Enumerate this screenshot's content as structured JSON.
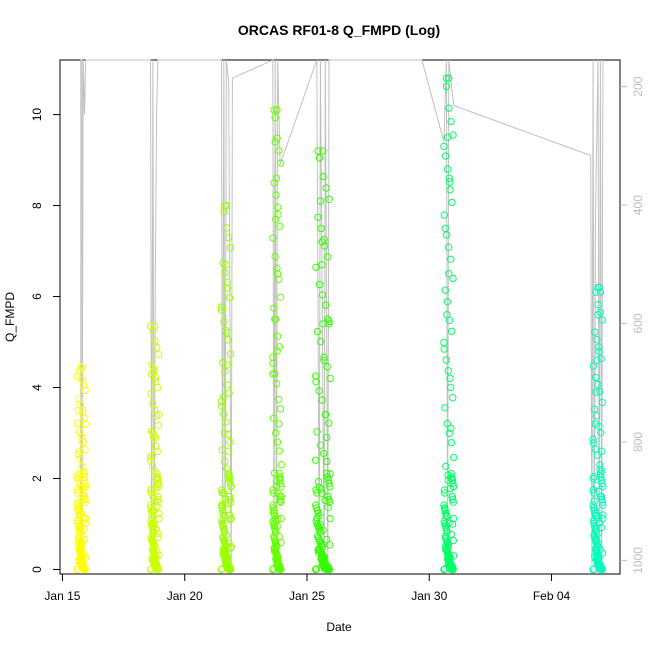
{
  "chart_data": {
    "type": "scatter",
    "title": "ORCAS RF01-8 Q_FMPD (Log)",
    "xlabel": "Date",
    "ylabel": "Q_FMPD",
    "x_ticks": [
      {
        "day": 15,
        "label": "Jan 15"
      },
      {
        "day": 20,
        "label": "Jan 20"
      },
      {
        "day": 25,
        "label": "Jan 25"
      },
      {
        "day": 30,
        "label": "Jan 30"
      },
      {
        "day": 35,
        "label": "Feb 04"
      }
    ],
    "y_ticks": [
      0,
      2,
      4,
      6,
      8,
      10
    ],
    "y2_ticks": [
      200,
      400,
      600,
      800,
      1000
    ],
    "xlim": [
      14.9,
      37.8
    ],
    "ylim": [
      -0.1,
      11.2
    ],
    "y2lim": [
      1023,
      155
    ],
    "y2_reversed": true,
    "grid": false,
    "series": [
      {
        "start": 15.6,
        "end": 15.95,
        "max": 4.45,
        "color": "#ffff00",
        "x": [
          15.6,
          15.65,
          15.7,
          15.75,
          15.8,
          15.85,
          15.9,
          15.95,
          15.68,
          15.72,
          15.78,
          15.83
        ],
        "y": [
          4.25,
          3.5,
          2.6,
          1.5,
          4.45,
          1.8,
          0.9,
          3.2,
          2.1,
          1.2,
          0.6,
          2.8
        ]
      },
      {
        "start": 18.6,
        "end": 18.95,
        "max": 5.35,
        "color": "#ccff00",
        "x": [
          18.6,
          18.65,
          18.7,
          18.75,
          18.8,
          18.85,
          18.9,
          18.95,
          18.68,
          18.72,
          18.78,
          18.88
        ],
        "y": [
          5.35,
          4.3,
          3.0,
          4.4,
          2.9,
          1.8,
          0.7,
          3.4,
          2.5,
          1.3,
          0.5,
          2.0
        ]
      },
      {
        "start": 21.5,
        "end": 21.9,
        "max": 8.0,
        "color": "#99ff00",
        "x": [
          21.5,
          21.55,
          21.6,
          21.65,
          21.7,
          21.75,
          21.8,
          21.85,
          21.9,
          21.62,
          21.72,
          21.78
        ],
        "y": [
          5.7,
          1.4,
          3.8,
          8.0,
          6.7,
          4.5,
          2.6,
          1.1,
          0.5,
          3.0,
          5.2,
          2.0
        ]
      },
      {
        "start": 23.6,
        "end": 23.95,
        "max": 10.1,
        "color": "#66ff00",
        "x": [
          23.6,
          23.65,
          23.7,
          23.75,
          23.8,
          23.85,
          23.9,
          23.95,
          23.68,
          23.72,
          23.78,
          23.82
        ],
        "y": [
          4.3,
          10.1,
          9.4,
          8.6,
          6.5,
          3.2,
          2.0,
          1.6,
          5.5,
          7.7,
          4.8,
          1.1
        ]
      },
      {
        "start": 25.35,
        "end": 25.95,
        "max": 9.2,
        "color": "#33ff00",
        "x": [
          25.35,
          25.45,
          25.55,
          25.6,
          25.65,
          25.7,
          25.75,
          25.8,
          25.85,
          25.9,
          25.95,
          25.5,
          25.62
        ],
        "y": [
          2.4,
          9.2,
          8.1,
          6.7,
          5.4,
          4.6,
          3.4,
          2.9,
          5.5,
          5.4,
          4.2,
          1.8,
          7.2
        ]
      },
      {
        "start": 30.6,
        "end": 31.0,
        "max": 10.8,
        "color": "#00ff66",
        "x": [
          30.6,
          30.65,
          30.7,
          30.75,
          30.8,
          30.85,
          30.9,
          30.95,
          31.0,
          30.72,
          30.82,
          30.88
        ],
        "y": [
          9.3,
          7.5,
          10.8,
          9.5,
          6.5,
          4.2,
          2.0,
          1.0,
          0.3,
          5.6,
          8.6,
          3.1
        ]
      },
      {
        "start": 36.7,
        "end": 37.1,
        "max": 6.2,
        "color": "#00ffbb",
        "x": [
          36.7,
          36.75,
          36.8,
          36.85,
          36.9,
          36.95,
          37.0,
          37.05,
          37.1,
          36.82,
          36.92,
          36.98
        ],
        "y": [
          2.0,
          1.5,
          3.2,
          4.6,
          5.6,
          6.2,
          6.1,
          2.6,
          1.2,
          3.9,
          0.8,
          2.2
        ]
      }
    ],
    "altitude_trace": [
      [
        15.75,
        0.0
      ],
      [
        15.75,
        11.2
      ],
      [
        15.8,
        11.2
      ],
      [
        15.8,
        0.2
      ],
      [
        15.85,
        11.2
      ],
      [
        15.9,
        10.0
      ],
      [
        15.95,
        11.2
      ],
      [
        17.1,
        11.2
      ],
      [
        18.6,
        11.2
      ],
      [
        18.65,
        0.1
      ],
      [
        18.7,
        11.2
      ],
      [
        18.75,
        0.1
      ],
      [
        18.8,
        6.6
      ],
      [
        18.85,
        10.0
      ],
      [
        18.9,
        11.2
      ],
      [
        21.5,
        11.2
      ],
      [
        21.55,
        0.1
      ],
      [
        21.6,
        11.2
      ],
      [
        21.65,
        0.1
      ],
      [
        21.7,
        11.2
      ],
      [
        21.8,
        10.7
      ],
      [
        21.9,
        0.0
      ],
      [
        21.95,
        10.8
      ],
      [
        23.6,
        11.2
      ],
      [
        23.65,
        0.2
      ],
      [
        23.7,
        11.2
      ],
      [
        23.75,
        0.1
      ],
      [
        23.8,
        11.2
      ],
      [
        23.9,
        8.9
      ],
      [
        25.4,
        11.2
      ],
      [
        25.5,
        0.1
      ],
      [
        25.55,
        11.2
      ],
      [
        25.7,
        0.2
      ],
      [
        25.75,
        11.2
      ],
      [
        25.85,
        0.1
      ],
      [
        25.9,
        11.2
      ],
      [
        29.7,
        11.2
      ],
      [
        30.6,
        9.4
      ],
      [
        30.7,
        11.2
      ],
      [
        30.75,
        0.2
      ],
      [
        30.8,
        11.2
      ],
      [
        31.0,
        10.2
      ],
      [
        36.6,
        9.1
      ],
      [
        36.65,
        0.1
      ],
      [
        36.7,
        11.2
      ],
      [
        36.75,
        0.1
      ],
      [
        36.8,
        7.8
      ],
      [
        36.9,
        11.2
      ],
      [
        36.95,
        0.1
      ],
      [
        37.0,
        11.2
      ],
      [
        37.05,
        0.2
      ],
      [
        37.1,
        11.2
      ]
    ]
  }
}
